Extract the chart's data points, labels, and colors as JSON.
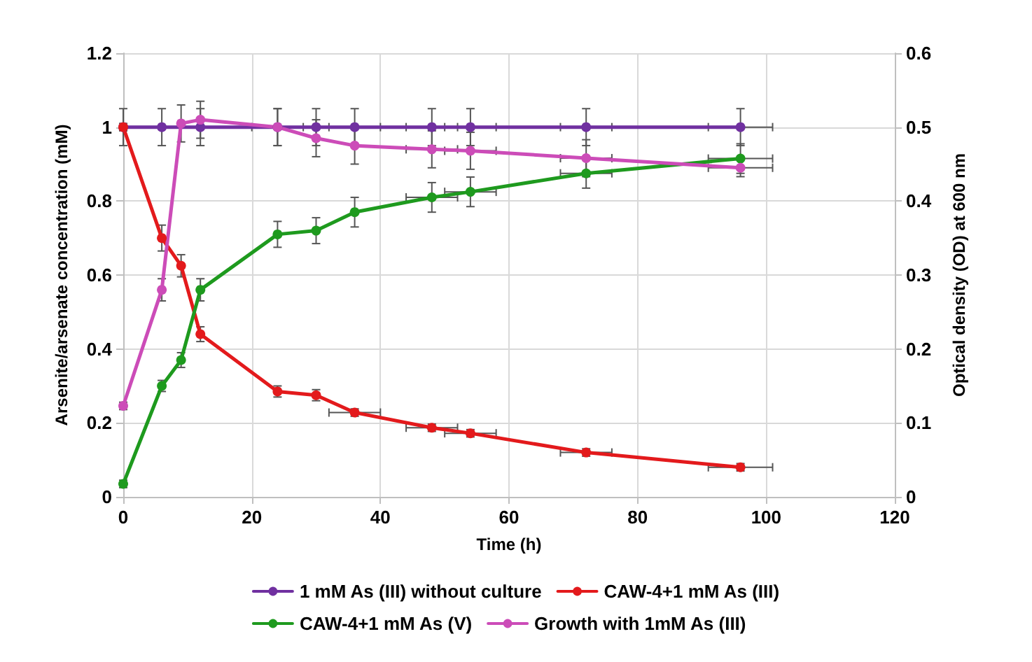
{
  "chart_data": {
    "type": "line",
    "xlabel": "Time (h)",
    "ylabel": "Arsenite/arsenate concentration (mM)",
    "y2label": "Optical density (OD) at 600 nm",
    "xlim": [
      0,
      120
    ],
    "xticks": [
      0,
      20,
      40,
      60,
      80,
      100,
      120
    ],
    "ylim": [
      0,
      1.2
    ],
    "yticks": [
      0,
      0.2,
      0.4,
      0.6,
      0.8,
      1,
      1.2
    ],
    "y2lim": [
      0,
      0.6
    ],
    "y2ticks": [
      0,
      0.1,
      0.2,
      0.3,
      0.4,
      0.5,
      0.6
    ],
    "grid": true,
    "legend": "bottom",
    "marker": "circle",
    "line_style": "solid",
    "series": [
      {
        "name": "1 mM As (III) without culture",
        "color": "#7030a0",
        "x": [
          0,
          6,
          12,
          24,
          30,
          36,
          48,
          54,
          72,
          96
        ],
        "values": [
          1,
          1,
          1,
          1,
          1,
          1,
          1,
          1,
          1,
          1
        ],
        "errors": [
          0.05,
          0.05,
          0.05,
          0.05,
          0.05,
          0.05,
          0.05,
          0.05,
          0.05,
          0.05
        ],
        "xerrors": [
          null,
          null,
          null,
          4,
          null,
          4,
          4,
          4,
          4,
          5
        ]
      },
      {
        "name": "CAW-4+1 mM As (III)",
        "color": "#e31a1c",
        "x": [
          0,
          6,
          9,
          12,
          24,
          30,
          36,
          48,
          54,
          72,
          96
        ],
        "values": [
          1,
          0.7,
          0.625,
          0.44,
          0.285,
          0.275,
          0.228,
          0.187,
          0.172,
          0.12,
          0.08
        ],
        "errors": [
          0.01,
          0.035,
          0.03,
          0.02,
          0.015,
          0.015,
          0.01,
          0.01,
          0.01,
          0.01,
          0.01
        ],
        "xerrors": [
          null,
          null,
          null,
          null,
          null,
          null,
          4,
          4,
          4,
          4,
          5
        ]
      },
      {
        "name": "CAW-4+1 mM As (V)",
        "color": "#1e9a1e",
        "x": [
          0,
          6,
          9,
          12,
          24,
          30,
          36,
          48,
          54,
          72,
          96
        ],
        "values": [
          0.035,
          0.3,
          0.37,
          0.56,
          0.71,
          0.72,
          0.77,
          0.81,
          0.825,
          0.875,
          0.915
        ],
        "errors": [
          0.01,
          0.015,
          0.02,
          0.03,
          0.035,
          0.035,
          0.04,
          0.04,
          0.04,
          0.04,
          0.04
        ],
        "xerrors": [
          null,
          null,
          null,
          null,
          null,
          null,
          null,
          4,
          4,
          4,
          5
        ]
      },
      {
        "name": "Growth with 1mM As (III)",
        "color": "#cc4cb8",
        "axis": "y2",
        "x": [
          0,
          6,
          9,
          12,
          24,
          30,
          36,
          48,
          54,
          72,
          96
        ],
        "values": [
          0.123,
          0.28,
          0.505,
          0.51,
          0.5,
          0.485,
          0.475,
          0.47,
          0.468,
          0.458,
          0.445
        ],
        "errors": [
          0.005,
          0.015,
          0.025,
          0.025,
          0.025,
          0.025,
          0.025,
          0.025,
          0.025,
          0.025,
          0.012
        ],
        "xerrors": [
          null,
          null,
          null,
          null,
          null,
          null,
          null,
          4,
          4,
          4,
          5
        ]
      }
    ]
  }
}
